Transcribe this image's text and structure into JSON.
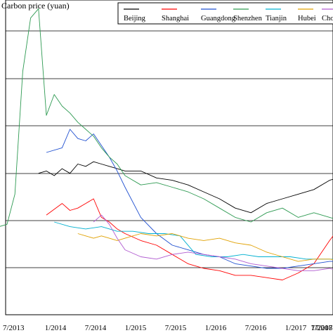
{
  "chart_data": {
    "type": "line",
    "title": "",
    "xlabel": "",
    "ylabel": "Carbon price (yuan)",
    "x_tick_labels": [
      "7/2013",
      "1/2014",
      "7/2014",
      "1/2015",
      "7/2015",
      "1/2016",
      "7/2016",
      "1/2017",
      "7/2017",
      "1/2018",
      "7/20"
    ],
    "y_gridlines": 6,
    "grid": "horizontal",
    "legend_position": "top-right",
    "series": [
      {
        "name": "Beijing",
        "color": "#000000",
        "points": [
          [
            "2013-11",
            51
          ],
          [
            "2013-12",
            52
          ],
          [
            "2014-01",
            50
          ],
          [
            "2014-02",
            53
          ],
          [
            "2014-03",
            51
          ],
          [
            "2014-04",
            55
          ],
          [
            "2014-05",
            54
          ],
          [
            "2014-06",
            56
          ],
          [
            "2014-07",
            55
          ],
          [
            "2014-08",
            54
          ],
          [
            "2014-09",
            53
          ],
          [
            "2014-10",
            52
          ],
          [
            "2014-12",
            52
          ],
          [
            "2015-02",
            49
          ],
          [
            "2015-04",
            48
          ],
          [
            "2015-06",
            46
          ],
          [
            "2015-08",
            43
          ],
          [
            "2015-10",
            40
          ],
          [
            "2015-12",
            36
          ],
          [
            "2016-02",
            34
          ],
          [
            "2016-04",
            38
          ],
          [
            "2016-06",
            40
          ],
          [
            "2016-08",
            42
          ],
          [
            "2016-10",
            44
          ],
          [
            "2016-12",
            48
          ],
          [
            "2017-02",
            50
          ],
          [
            "2017-04",
            48
          ],
          [
            "2017-06",
            47
          ],
          [
            "2017-08",
            45
          ],
          [
            "2017-10",
            47
          ],
          [
            "2017-12",
            45
          ],
          [
            "2018-02",
            50
          ],
          [
            "2018-04",
            52
          ],
          [
            "2018-06",
            55
          ],
          [
            "2018-08",
            50
          ],
          [
            "2018-10",
            56
          ]
        ]
      },
      {
        "name": "Shanghai",
        "color": "#ff0000",
        "points": [
          [
            "2013-12",
            33
          ],
          [
            "2014-02",
            38
          ],
          [
            "2014-03",
            35
          ],
          [
            "2014-04",
            36
          ],
          [
            "2014-05",
            38
          ],
          [
            "2014-06",
            40
          ],
          [
            "2014-07",
            32
          ],
          [
            "2014-08",
            30
          ],
          [
            "2014-09",
            27
          ],
          [
            "2014-10",
            25
          ],
          [
            "2014-12",
            22
          ],
          [
            "2015-02",
            20
          ],
          [
            "2015-04",
            16
          ],
          [
            "2015-06",
            12
          ],
          [
            "2015-08",
            10
          ],
          [
            "2015-10",
            9
          ],
          [
            "2015-12",
            7
          ],
          [
            "2016-02",
            7
          ],
          [
            "2016-04",
            6
          ],
          [
            "2016-06",
            5
          ],
          [
            "2016-08",
            8
          ],
          [
            "2016-10",
            12
          ],
          [
            "2016-12",
            22
          ],
          [
            "2017-02",
            31
          ],
          [
            "2017-04",
            33
          ],
          [
            "2017-06",
            33
          ],
          [
            "2017-08",
            30
          ],
          [
            "2017-10",
            29
          ],
          [
            "2017-12",
            30
          ],
          [
            "2018-02",
            33
          ],
          [
            "2018-04",
            36
          ],
          [
            "2018-06",
            37
          ],
          [
            "2018-08",
            36
          ],
          [
            "2018-10",
            36
          ]
        ]
      },
      {
        "name": "Guangdong",
        "color": "#1f4fd0",
        "points": [
          [
            "2013-12",
            60
          ],
          [
            "2014-02",
            62
          ],
          [
            "2014-03",
            70
          ],
          [
            "2014-04",
            66
          ],
          [
            "2014-05",
            65
          ],
          [
            "2014-06",
            68
          ],
          [
            "2014-07",
            63
          ],
          [
            "2014-08",
            58
          ],
          [
            "2014-09",
            52
          ],
          [
            "2014-10",
            45
          ],
          [
            "2014-12",
            32
          ],
          [
            "2015-02",
            25
          ],
          [
            "2015-04",
            20
          ],
          [
            "2015-06",
            18
          ],
          [
            "2015-08",
            16
          ],
          [
            "2015-10",
            15
          ],
          [
            "2015-12",
            12
          ],
          [
            "2016-02",
            11
          ],
          [
            "2016-04",
            10
          ],
          [
            "2016-06",
            10
          ],
          [
            "2016-08",
            11
          ],
          [
            "2016-10",
            12
          ],
          [
            "2016-12",
            13
          ],
          [
            "2017-02",
            13
          ],
          [
            "2017-04",
            14
          ],
          [
            "2017-06",
            14
          ],
          [
            "2017-08",
            13
          ],
          [
            "2017-10",
            12
          ],
          [
            "2017-12",
            12
          ],
          [
            "2018-02",
            12
          ],
          [
            "2018-04",
            12
          ],
          [
            "2018-06",
            13
          ],
          [
            "2018-08",
            14
          ],
          [
            "2018-10",
            15
          ]
        ]
      },
      {
        "name": "Shenzhen",
        "color": "#2e9a52",
        "points": [
          [
            "2013-06",
            28
          ],
          [
            "2013-07",
            29
          ],
          [
            "2013-08",
            42
          ],
          [
            "2013-09",
            95
          ],
          [
            "2013-10",
            118
          ],
          [
            "2013-11",
            122
          ],
          [
            "2013-12",
            76
          ],
          [
            "2014-01",
            85
          ],
          [
            "2014-02",
            80
          ],
          [
            "2014-03",
            77
          ],
          [
            "2014-04",
            73
          ],
          [
            "2014-05",
            70
          ],
          [
            "2014-06",
            67
          ],
          [
            "2014-07",
            62
          ],
          [
            "2014-08",
            58
          ],
          [
            "2014-09",
            55
          ],
          [
            "2014-10",
            50
          ],
          [
            "2014-12",
            46
          ],
          [
            "2015-02",
            47
          ],
          [
            "2015-04",
            45
          ],
          [
            "2015-06",
            43
          ],
          [
            "2015-08",
            40
          ],
          [
            "2015-10",
            36
          ],
          [
            "2015-12",
            32
          ],
          [
            "2016-02",
            30
          ],
          [
            "2016-04",
            34
          ],
          [
            "2016-06",
            36
          ],
          [
            "2016-08",
            32
          ],
          [
            "2016-10",
            34
          ],
          [
            "2016-12",
            32
          ],
          [
            "2017-02",
            30
          ],
          [
            "2017-04",
            33
          ],
          [
            "2017-06",
            32
          ],
          [
            "2017-08",
            35
          ],
          [
            "2017-10",
            31
          ],
          [
            "2017-12",
            29
          ],
          [
            "2018-02",
            35
          ],
          [
            "2018-04",
            40
          ],
          [
            "2018-06",
            45
          ],
          [
            "2018-08",
            50
          ],
          [
            "2018-10",
            60
          ]
        ]
      },
      {
        "name": "Tianjin",
        "color": "#00b0d0",
        "points": [
          [
            "2014-01",
            30
          ],
          [
            "2014-03",
            28
          ],
          [
            "2014-05",
            27
          ],
          [
            "2014-07",
            28
          ],
          [
            "2014-09",
            26
          ],
          [
            "2014-11",
            26
          ],
          [
            "2015-01",
            25
          ],
          [
            "2015-03",
            25
          ],
          [
            "2015-05",
            24
          ],
          [
            "2015-07",
            16
          ],
          [
            "2015-09",
            15
          ],
          [
            "2015-11",
            15
          ],
          [
            "2016-01",
            16
          ],
          [
            "2016-03",
            15
          ],
          [
            "2016-05",
            15
          ],
          [
            "2016-07",
            15
          ],
          [
            "2016-09",
            14
          ],
          [
            "2016-11",
            14
          ],
          [
            "2017-01",
            14
          ],
          [
            "2017-03",
            16
          ],
          [
            "2017-05",
            16
          ],
          [
            "2017-06",
            5
          ],
          [
            "2017-08",
            4
          ],
          [
            "2017-10",
            2
          ],
          [
            "2017-12",
            2
          ],
          [
            "2018-02",
            3
          ],
          [
            "2018-04",
            15
          ],
          [
            "2018-06",
            16
          ],
          [
            "2018-08",
            14
          ],
          [
            "2018-10",
            14
          ]
        ]
      },
      {
        "name": "Hubei",
        "color": "#e0a000",
        "points": [
          [
            "2014-04",
            25
          ],
          [
            "2014-05",
            24
          ],
          [
            "2014-06",
            23
          ],
          [
            "2014-07",
            24
          ],
          [
            "2014-08",
            23
          ],
          [
            "2014-09",
            22
          ],
          [
            "2014-10",
            23
          ],
          [
            "2014-12",
            25
          ],
          [
            "2015-02",
            24
          ],
          [
            "2015-04",
            25
          ],
          [
            "2015-06",
            23
          ],
          [
            "2015-08",
            22
          ],
          [
            "2015-10",
            23
          ],
          [
            "2015-12",
            21
          ],
          [
            "2016-02",
            20
          ],
          [
            "2016-04",
            17
          ],
          [
            "2016-06",
            15
          ],
          [
            "2016-08",
            13
          ],
          [
            "2016-10",
            14
          ],
          [
            "2016-12",
            14
          ],
          [
            "2017-02",
            13
          ],
          [
            "2017-04",
            13
          ],
          [
            "2017-06",
            14
          ],
          [
            "2017-08",
            14
          ],
          [
            "2017-10",
            14
          ],
          [
            "2017-12",
            13
          ],
          [
            "2018-02",
            13
          ],
          [
            "2018-04",
            14
          ],
          [
            "2018-06",
            15
          ],
          [
            "2018-08",
            20
          ],
          [
            "2018-10",
            22
          ]
        ]
      },
      {
        "name": "Chongqing",
        "color": "#b05ad0",
        "points": [
          [
            "2014-06",
            30
          ],
          [
            "2014-07",
            33
          ],
          [
            "2014-08",
            29
          ],
          [
            "2014-09",
            23
          ],
          [
            "2014-10",
            18
          ],
          [
            "2014-12",
            15
          ],
          [
            "2015-02",
            14
          ],
          [
            "2015-04",
            16
          ],
          [
            "2015-06",
            17
          ],
          [
            "2015-08",
            16
          ],
          [
            "2015-10",
            15
          ],
          [
            "2015-12",
            14
          ],
          [
            "2016-02",
            12
          ],
          [
            "2016-04",
            11
          ],
          [
            "2016-06",
            10
          ],
          [
            "2016-08",
            9
          ],
          [
            "2016-10",
            9
          ],
          [
            "2016-12",
            10
          ],
          [
            "2017-02",
            8
          ],
          [
            "2017-04",
            7
          ],
          [
            "2017-06",
            8
          ],
          [
            "2017-08",
            7
          ],
          [
            "2017-10",
            6
          ],
          [
            "2017-12",
            6
          ],
          [
            "2018-02",
            7
          ],
          [
            "2018-04",
            7
          ],
          [
            "2018-06",
            8
          ],
          [
            "2018-08",
            8
          ],
          [
            "2018-10",
            9
          ]
        ]
      }
    ]
  }
}
